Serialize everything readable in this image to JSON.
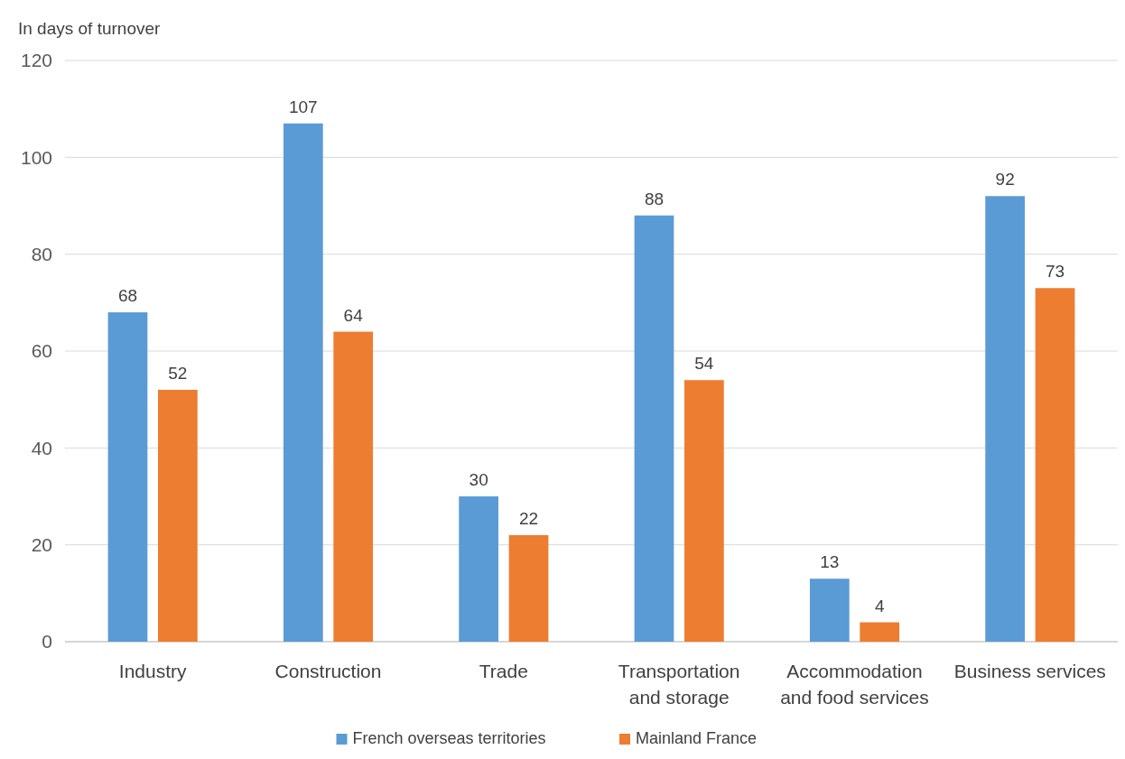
{
  "chart_data": {
    "type": "bar",
    "ylabel": "In days of turnover",
    "categories": [
      "Industry",
      "Construction",
      "Trade",
      "Transportation and storage",
      "Accommodation and food services",
      "Business services"
    ],
    "series": [
      {
        "name": "French overseas territories",
        "color": "#5b9bd5",
        "values": [
          68,
          107,
          30,
          88,
          13,
          92
        ]
      },
      {
        "name": "Mainland France",
        "color": "#ed7d31",
        "values": [
          52,
          64,
          22,
          54,
          4,
          73
        ]
      }
    ],
    "ylim": [
      0,
      120
    ],
    "yticks": [
      0,
      20,
      40,
      60,
      80,
      100,
      120
    ],
    "grid": "y",
    "legend": "bottom",
    "data_labels": true
  }
}
